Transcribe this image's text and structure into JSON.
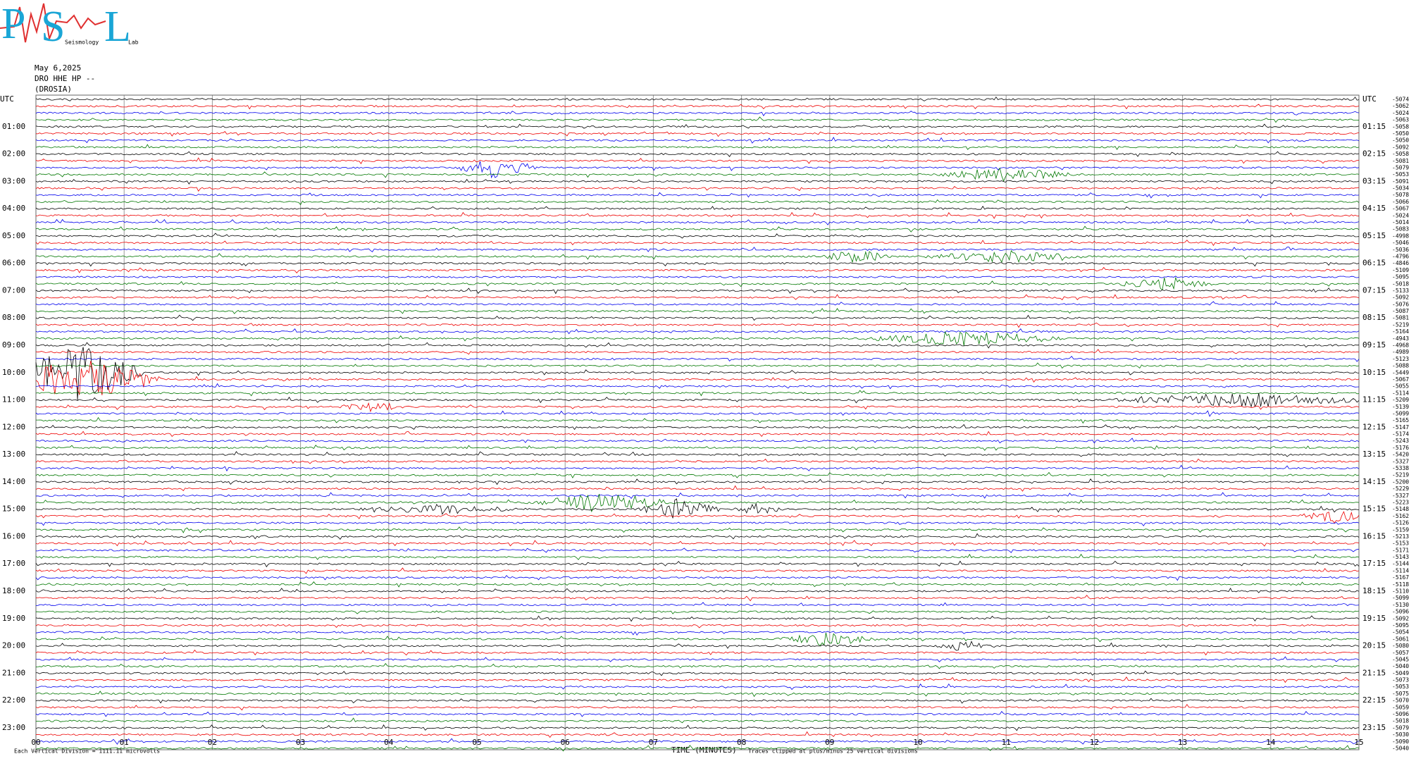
{
  "logo": {
    "letters": [
      "P",
      "S",
      "L"
    ],
    "small": [
      "Seismology",
      "Lab"
    ]
  },
  "header": {
    "date": "May 6,2025",
    "station": "DRO HHE HP --",
    "site": "(DROSIA)"
  },
  "left_labels": [
    "UTC",
    "01:00",
    "02:00",
    "03:00",
    "04:00",
    "05:00",
    "06:00",
    "07:00",
    "08:00",
    "09:00",
    "10:00",
    "11:00",
    "12:00",
    "13:00",
    "14:00",
    "15:00",
    "16:00",
    "17:00",
    "18:00",
    "19:00",
    "20:00",
    "21:00",
    "22:00",
    "23:00"
  ],
  "right_labels": [
    "UTC",
    "01:15",
    "02:15",
    "03:15",
    "04:15",
    "05:15",
    "06:15",
    "07:15",
    "08:15",
    "09:15",
    "10:15",
    "11:15",
    "12:15",
    "13:15",
    "14:15",
    "15:15",
    "16:15",
    "17:15",
    "18:15",
    "19:15",
    "20:15",
    "21:15",
    "22:15",
    "23:15"
  ],
  "trace_offsets": [
    "-5074",
    "-5062",
    "-5024",
    "-5063",
    "-5058",
    "-5050",
    "-5050",
    "-5092",
    "-5058",
    "-5081",
    "-5079",
    "-5053",
    "-5091",
    "-5034",
    "-5078",
    "-5066",
    "-5067",
    "-5024",
    "-5014",
    "-5083",
    "-4998",
    "-5046",
    "-5036",
    "-4796",
    "-4846",
    "-5109",
    "-5095",
    "-5018",
    "-5133",
    "-5092",
    "-5076",
    "-5087",
    "-5081",
    "-5219",
    "-5164",
    "-4943",
    "-4968",
    "-4989",
    "-5123",
    "-5088",
    "-5449",
    "-5067",
    "-5055",
    "-5114",
    "-5209",
    "-5139",
    "-5099",
    "-5165",
    "-5147",
    "-5174",
    "-5243",
    "-5176",
    "-5420",
    "-5327",
    "-5338",
    "-5219",
    "-5200",
    "-5229",
    "-5327",
    "-5223",
    "-5148",
    "-5162",
    "-5126",
    "-5159",
    "-5213",
    "-5153",
    "-5171",
    "-5143",
    "-5144",
    "-5114",
    "-5167",
    "-5118",
    "-5110",
    "-5099",
    "-5130",
    "-5096",
    "-5092",
    "-5095",
    "-5054",
    "-5061",
    "-5080",
    "-5057",
    "-5045",
    "-5040",
    "-5049",
    "-5073",
    "-5053",
    "-5075",
    "-5070",
    "-5059",
    "-5096",
    "-5018",
    "-5079",
    "-5030",
    "-5090",
    "-5040"
  ],
  "x_labels": [
    "00",
    "01",
    "02",
    "03",
    "04",
    "05",
    "06",
    "07",
    "08",
    "09",
    "10",
    "11",
    "12",
    "13",
    "14",
    "15"
  ],
  "footer": {
    "scale": "Each Vertical Division = 1111.11 microvolts",
    "axis": "TIME (MINUTES)",
    "clip": "Traces clipped at plus/minus 25 vertical divisions"
  }
}
